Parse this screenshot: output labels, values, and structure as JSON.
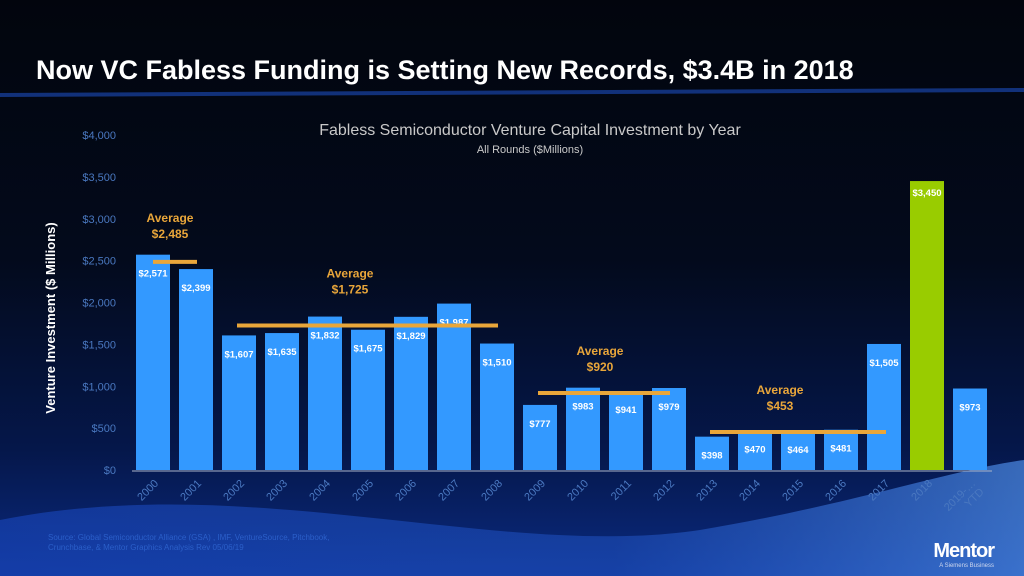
{
  "slide_title": "Now VC Fabless Funding is Setting New Records,  $3.4B in 2018",
  "source_note": "Source: Global Semiconductor Alliance (GSA) , IMF, VentureSource, Pitchbook, Crunchbase, & Mentor Graphics Analysis Rev 05/06/19",
  "logo": {
    "name": "Mentor",
    "tagline": "A Siemens Business"
  },
  "colors": {
    "bar": "#3399ff",
    "highlight_bar": "#99cc00",
    "average": "#e9a63a",
    "axis_ticks": "#4a78c0"
  },
  "chart_data": {
    "type": "bar",
    "title": "Fabless Semiconductor Venture Capital Investment by Year",
    "subtitle": "All Rounds ($Millions)",
    "ylabel": "Venture Investment ($ Millions)",
    "xlabel": "",
    "ylim": [
      0,
      4000
    ],
    "yticks": [
      0,
      500,
      1000,
      1500,
      2000,
      2500,
      3000,
      3500,
      4000
    ],
    "ytick_labels": [
      "$0",
      "$500",
      "$1,000",
      "$1,500",
      "$2,000",
      "$2,500",
      "$3,000",
      "$3,500",
      "$4,000"
    ],
    "grid": false,
    "categories": [
      "2000",
      "2001",
      "2002",
      "2003",
      "2004",
      "2005",
      "2006",
      "2007",
      "2008",
      "2009",
      "2010",
      "2011",
      "2012",
      "2013",
      "2014",
      "2015",
      "2016",
      "2017",
      "2018",
      "2019-…\nYTD"
    ],
    "values": [
      2571,
      2399,
      1607,
      1635,
      1832,
      1675,
      1829,
      1987,
      1510,
      777,
      983,
      941,
      979,
      398,
      470,
      464,
      481,
      1505,
      3450,
      973
    ],
    "data_labels": [
      "$2,571",
      "$2,399",
      "$1,607",
      "$1,635",
      "$1,832",
      "$1,675",
      "$1,829",
      "$1,987",
      "$1,510",
      "$777",
      "$983",
      "$941",
      "$979",
      "$398",
      "$470",
      "$464",
      "$481",
      "$1,505",
      "$3,450",
      "$973"
    ],
    "highlight_category": "2018",
    "annotations": [
      {
        "label": "Average",
        "value_label": "$2,485",
        "value": 2485,
        "from": "2000",
        "to": "2001"
      },
      {
        "label": "Average",
        "value_label": "$1,725",
        "value": 1725,
        "from": "2002",
        "to": "2008"
      },
      {
        "label": "Average",
        "value_label": "$920",
        "value": 920,
        "from": "2009",
        "to": "2012"
      },
      {
        "label": "Average",
        "value_label": "$453",
        "value": 453,
        "from": "2013",
        "to": "2016"
      }
    ]
  }
}
